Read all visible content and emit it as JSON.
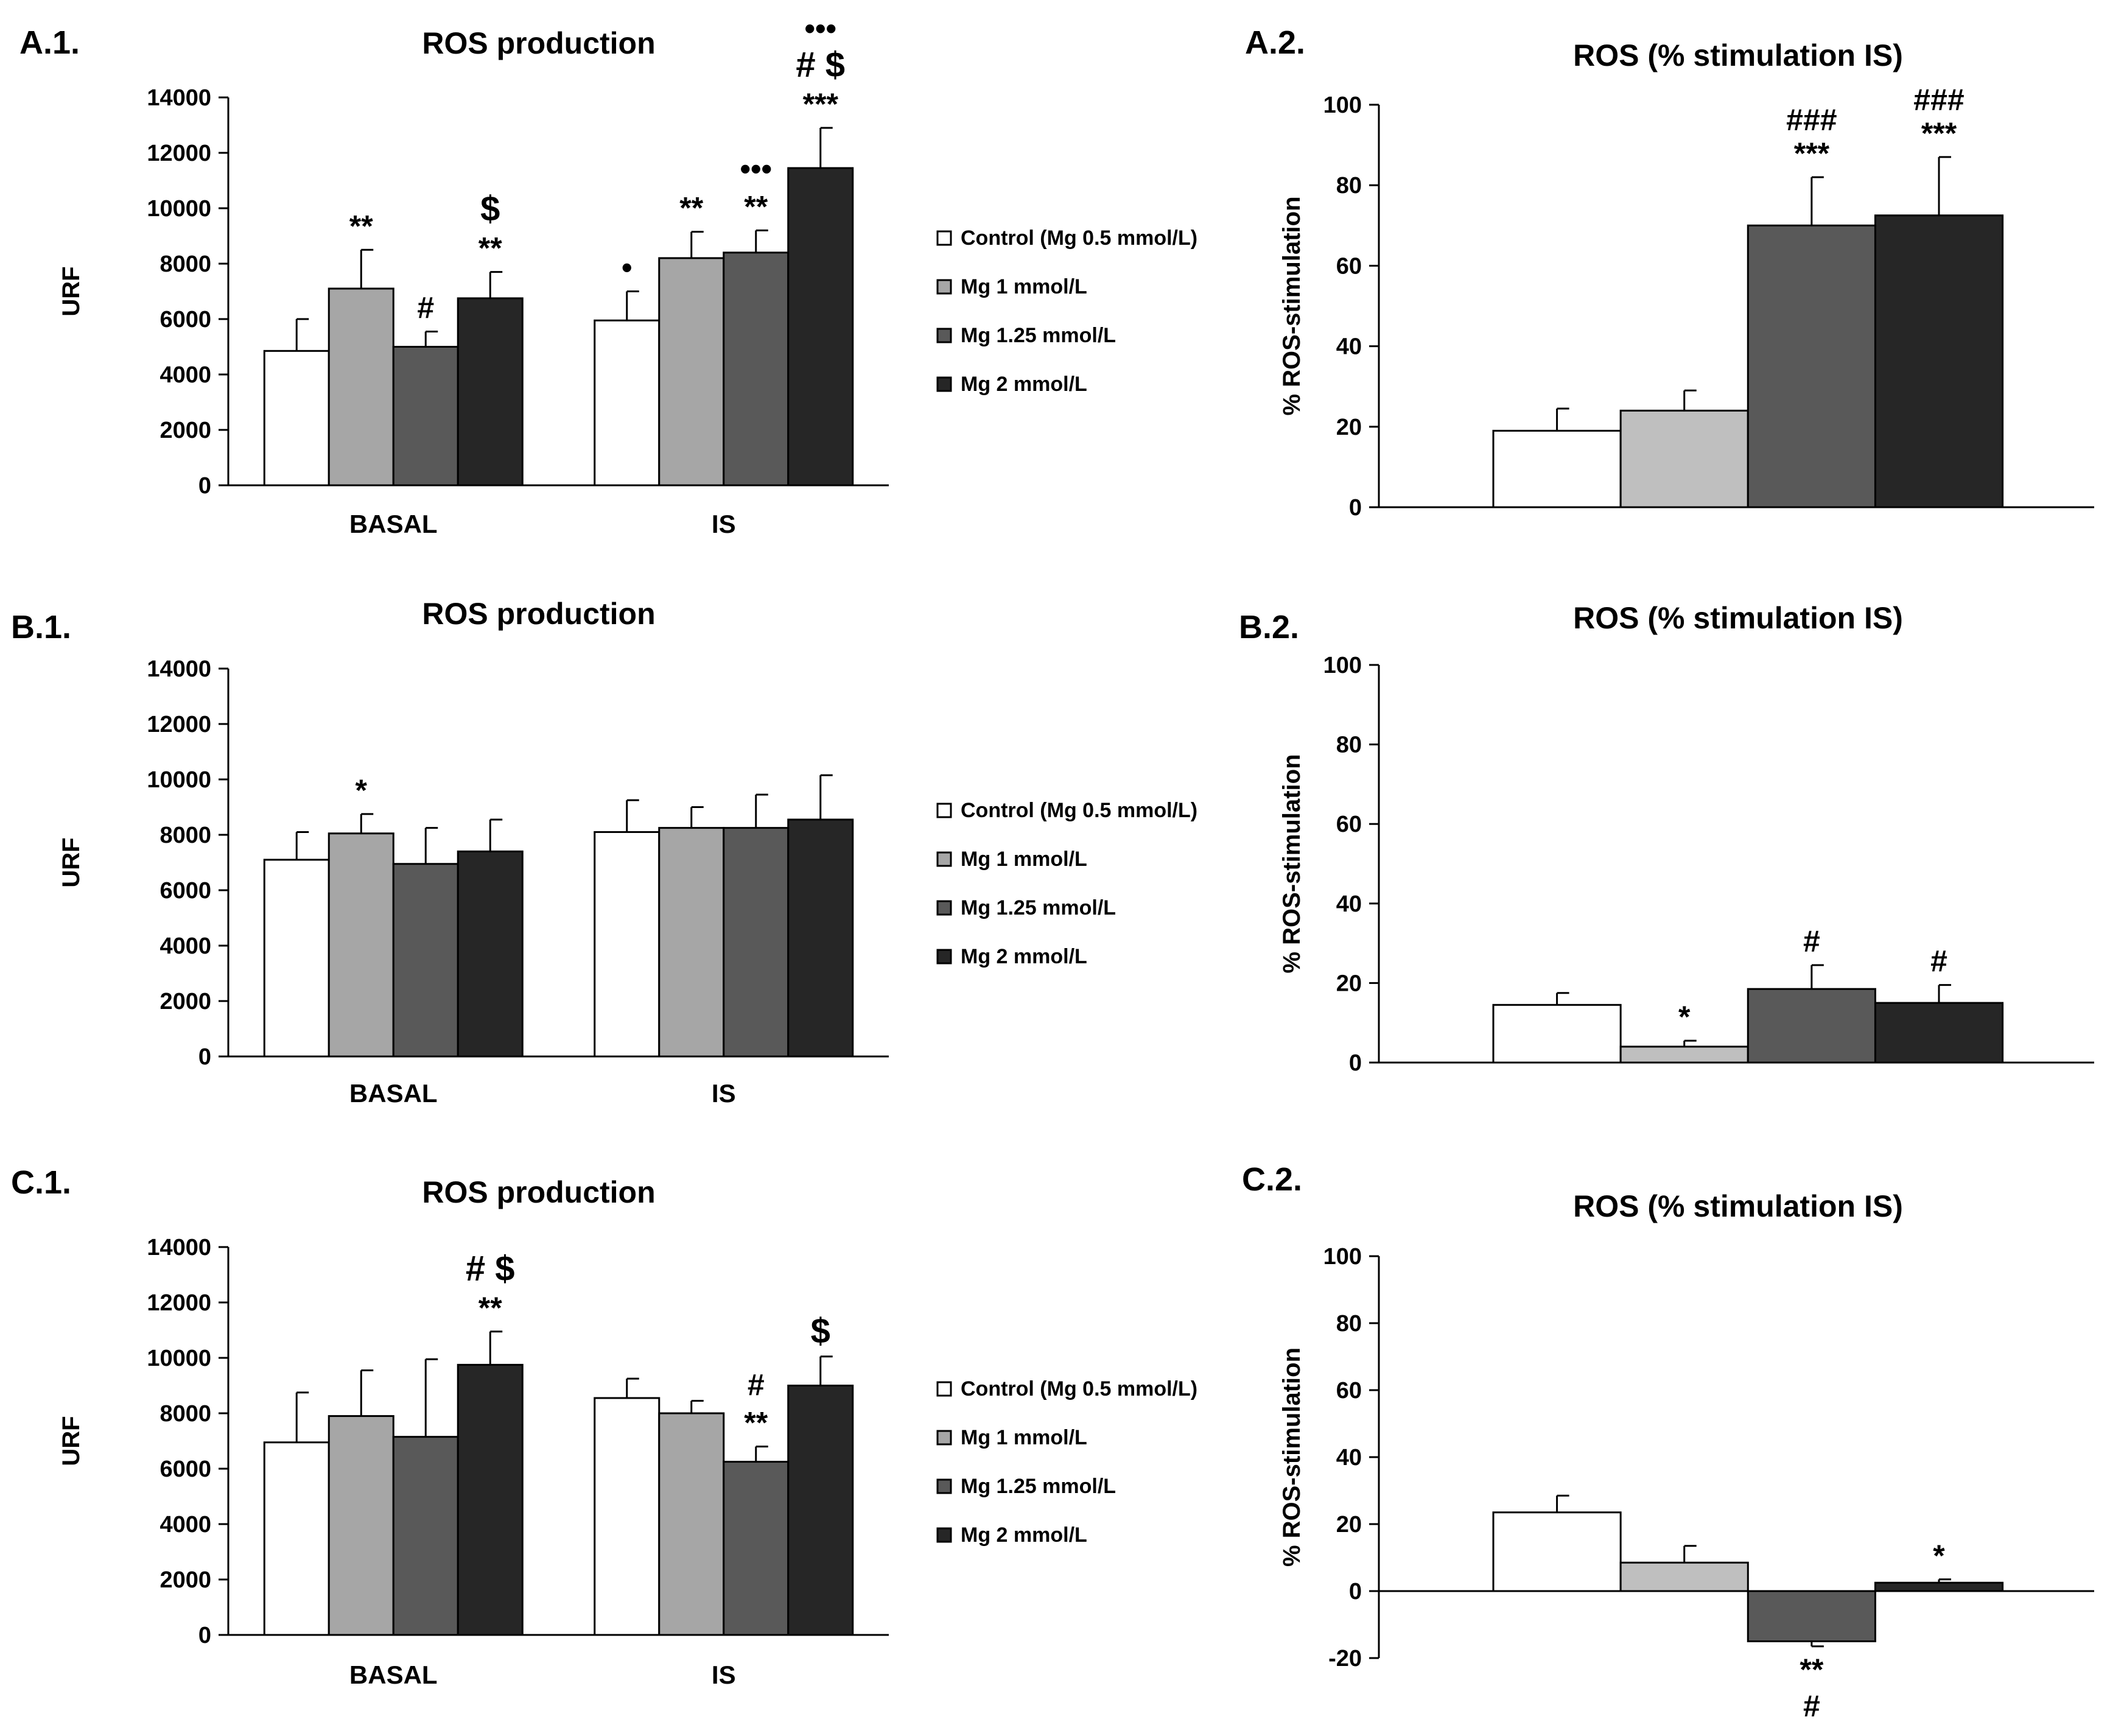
{
  "colors": {
    "control": "#ffffff",
    "mg1": "#a6a6a6",
    "mg125": "#595959",
    "mg2": "#262626",
    "mg1_pct": "#bfbfbf"
  },
  "legend": {
    "entries": [
      "Control (Mg 0.5 mmol/L)",
      "Mg 1 mmol/L",
      "Mg 1.25 mmol/L",
      "Mg 2 mmol/L"
    ]
  },
  "chart_data": [
    {
      "id": "A1",
      "panel_label": "A.1.",
      "type": "bar",
      "title": "ROS production",
      "ylabel": "URF",
      "ylim": [
        0,
        14000
      ],
      "yticks": [
        0,
        2000,
        4000,
        6000,
        8000,
        10000,
        12000,
        14000
      ],
      "categories": [
        "BASAL",
        "IS"
      ],
      "series": [
        {
          "name": "Control (Mg 0.5 mmol/L)",
          "values": [
            4850,
            5950
          ],
          "errors": [
            1150,
            1050
          ],
          "annotations": [
            [],
            [
              "•"
            ]
          ]
        },
        {
          "name": "Mg 1 mmol/L",
          "values": [
            7100,
            8200
          ],
          "errors": [
            1400,
            950
          ],
          "annotations": [
            [
              "**"
            ],
            [
              "**"
            ]
          ]
        },
        {
          "name": "Mg 1.25 mmol/L",
          "values": [
            5000,
            8400
          ],
          "errors": [
            550,
            800
          ],
          "annotations": [
            [
              "#"
            ],
            [
              "**",
              "•••"
            ]
          ]
        },
        {
          "name": "Mg 2 mmol/L",
          "values": [
            6750,
            11450
          ],
          "errors": [
            950,
            1450
          ],
          "annotations": [
            [
              "**",
              "$"
            ],
            [
              "***",
              "# $",
              "•••"
            ]
          ]
        }
      ]
    },
    {
      "id": "A2",
      "panel_label": "A.2.",
      "type": "bar",
      "title": "ROS (% stimulation  IS)",
      "ylabel": "% ROS-stimulation",
      "ylim": [
        0,
        100
      ],
      "yticks": [
        0,
        20,
        40,
        60,
        80,
        100
      ],
      "categories": [
        "Control (Mg 0.5 mmol/L)",
        "Mg 1 mmol/L",
        "Mg 1.25 mmol/L",
        "Mg 2 mmol/L"
      ],
      "values": [
        19,
        24,
        70,
        72.5
      ],
      "errors": [
        5.5,
        5,
        12,
        14.5
      ],
      "annotations": [
        [],
        [],
        [
          "***",
          "###"
        ],
        [
          "***",
          "###"
        ]
      ]
    },
    {
      "id": "B1",
      "panel_label": "B.1.",
      "type": "bar",
      "title": "ROS production",
      "ylabel": "URF",
      "ylim": [
        0,
        14000
      ],
      "yticks": [
        0,
        2000,
        4000,
        6000,
        8000,
        10000,
        12000,
        14000
      ],
      "categories": [
        "BASAL",
        "IS"
      ],
      "series": [
        {
          "name": "Control (Mg 0.5 mmol/L)",
          "values": [
            7100,
            8100
          ],
          "errors": [
            1000,
            1150
          ],
          "annotations": [
            [],
            []
          ]
        },
        {
          "name": "Mg 1 mmol/L",
          "values": [
            8050,
            8250
          ],
          "errors": [
            700,
            750
          ],
          "annotations": [
            [
              "*"
            ],
            []
          ]
        },
        {
          "name": "Mg 1.25 mmol/L",
          "values": [
            6950,
            8250
          ],
          "errors": [
            1300,
            1200
          ],
          "annotations": [
            [],
            []
          ]
        },
        {
          "name": "Mg 2 mmol/L",
          "values": [
            7400,
            8550
          ],
          "errors": [
            1150,
            1600
          ],
          "annotations": [
            [],
            []
          ]
        }
      ]
    },
    {
      "id": "B2",
      "panel_label": "B.2.",
      "type": "bar",
      "title": "ROS (% stimulation  IS)",
      "ylabel": "% ROS-stimulation",
      "ylim": [
        0,
        100
      ],
      "yticks": [
        0,
        20,
        40,
        60,
        80,
        100
      ],
      "categories": [
        "Control (Mg 0.5 mmol/L)",
        "Mg 1 mmol/L",
        "Mg 1.25 mmol/L",
        "Mg 2 mmol/L"
      ],
      "values": [
        14.5,
        4,
        18.5,
        15
      ],
      "errors": [
        3,
        1.5,
        6,
        4.5
      ],
      "annotations": [
        [],
        [
          "*"
        ],
        [
          "#"
        ],
        [
          "#"
        ]
      ]
    },
    {
      "id": "C1",
      "panel_label": "C.1.",
      "type": "bar",
      "title": "ROS production",
      "ylabel": "URF",
      "ylim": [
        0,
        14000
      ],
      "yticks": [
        0,
        2000,
        4000,
        6000,
        8000,
        10000,
        12000,
        14000
      ],
      "categories": [
        "BASAL",
        "IS"
      ],
      "series": [
        {
          "name": "Control (Mg 0.5 mmol/L)",
          "values": [
            6950,
            8550
          ],
          "errors": [
            1800,
            700
          ],
          "annotations": [
            [],
            []
          ]
        },
        {
          "name": "Mg 1 mmol/L",
          "values": [
            7900,
            8000
          ],
          "errors": [
            1650,
            450
          ],
          "annotations": [
            [],
            []
          ]
        },
        {
          "name": "Mg 1.25 mmol/L",
          "values": [
            7150,
            6250
          ],
          "errors": [
            2800,
            550
          ],
          "annotations": [
            [],
            [
              "**",
              "#"
            ]
          ]
        },
        {
          "name": "Mg 2 mmol/L",
          "values": [
            9750,
            9000
          ],
          "errors": [
            1200,
            1050
          ],
          "annotations": [
            [
              "**",
              "# $"
            ],
            [
              "$"
            ]
          ]
        }
      ]
    },
    {
      "id": "C2",
      "panel_label": "C.2.",
      "type": "bar",
      "title": "ROS (% stimulation  IS)",
      "ylabel": "% ROS-stimulation",
      "ylim": [
        -20,
        100
      ],
      "yticks": [
        -20,
        0,
        20,
        40,
        60,
        80,
        100
      ],
      "categories": [
        "Control (Mg 0.5 mmol/L)",
        "Mg 1 mmol/L",
        "Mg 1.25 mmol/L",
        "Mg 2 mmol/L"
      ],
      "values": [
        23.5,
        8.5,
        -15,
        2.5
      ],
      "errors": [
        5,
        5,
        1.5,
        1
      ],
      "annotations": [
        [],
        [],
        [
          "**",
          "#"
        ],
        [
          "*"
        ]
      ]
    }
  ]
}
